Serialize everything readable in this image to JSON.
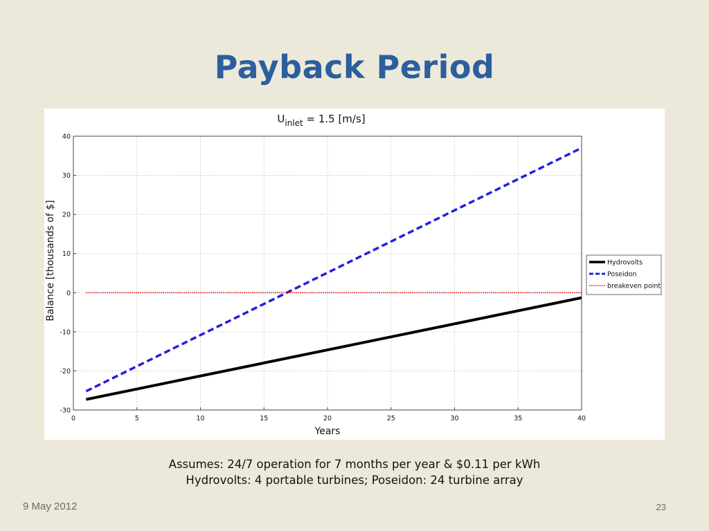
{
  "slide": {
    "title": "Payback Period",
    "caption_line1": "Assumes: 24/7 operation for 7 months per year & $0.11 per kWh",
    "caption_line2": "Hydrovolts: 4 portable turbines; Poseidon: 24 turbine array",
    "date": "9 May 2012",
    "page_number": "23"
  },
  "chart_data": {
    "type": "line",
    "title_main": "U",
    "title_subscript": "inlet",
    "title_rest": " = 1.5 [m/s]",
    "xlabel": "Years",
    "ylabel": "Balance [thousands of $]",
    "xlim": [
      0,
      40
    ],
    "ylim": [
      -30,
      40
    ],
    "xticks": [
      0,
      5,
      10,
      15,
      20,
      25,
      30,
      35,
      40
    ],
    "yticks": [
      -30,
      -20,
      -10,
      0,
      10,
      20,
      30,
      40
    ],
    "grid": true,
    "legend_position": "right",
    "series": [
      {
        "name": "Hydrovolts",
        "x": [
          1,
          40
        ],
        "y": [
          -27.3,
          -1.3
        ],
        "color": "#000000",
        "style": "solid"
      },
      {
        "name": "Poseidon",
        "x": [
          1,
          40
        ],
        "y": [
          -25.2,
          37.0
        ],
        "color": "#2020e0",
        "style": "dashed"
      },
      {
        "name": "breakeven point",
        "x": [
          1,
          40
        ],
        "y": [
          0,
          0
        ],
        "color": "#e03030",
        "style": "dotted"
      }
    ]
  }
}
